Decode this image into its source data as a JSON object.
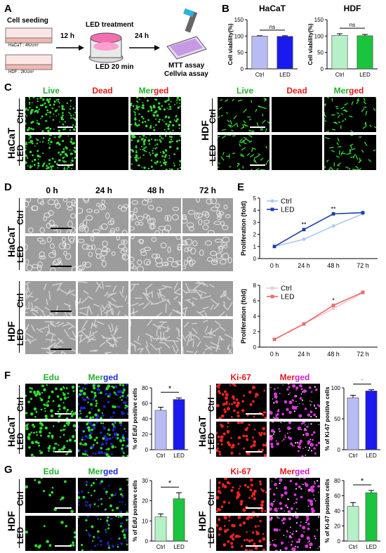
{
  "panels": {
    "A": "A",
    "B": "B",
    "C": "C",
    "D": "D",
    "E": "E",
    "F": "F",
    "G": "G"
  },
  "schematic": {
    "cell_seeding": "Cell seeding",
    "hacat_density": "HaCaT : 4K/cm²",
    "hdf_density": "HDF : 2K/cm²",
    "t1": "12 h",
    "led_treatment": "LED treatment",
    "led_time": "LED 20 min",
    "t2": "24 h",
    "assay1": "MTT assay",
    "assay2": "Cellvia assay"
  },
  "cells": {
    "hacat": "HaCaT",
    "hdf": "HDF"
  },
  "rows": {
    "ctrl": "Ctrl",
    "led": "LED"
  },
  "stain": {
    "live": "Live",
    "dead": "Dead",
    "merged": "Merged",
    "edu": "Edu",
    "ki67": "Ki-67"
  },
  "times": [
    "0 h",
    "24 h",
    "48 h",
    "72 h"
  ],
  "sig": {
    "ns": "ns",
    "star": "*",
    "dstar": "**"
  },
  "colors": {
    "ctrl_blue": "#b8bcf4",
    "led_blue": "#1a1aee",
    "ctrl_green": "#b6f0c6",
    "led_green": "#1bc43d",
    "line_ctrl_blue": "#a9c8f4",
    "line_led_blue": "#1c3fae",
    "line_ctrl_red": "#f6c6cc",
    "line_led_red": "#ef6a6a"
  },
  "chart_data": [
    {
      "id": "B-HaCaT",
      "type": "bar",
      "title": "HaCaT",
      "ylabel": "Cell viability(%)",
      "categories": [
        "Ctrl",
        "LED"
      ],
      "values": [
        100,
        99
      ],
      "errors": [
        1,
        2
      ],
      "ylim": [
        0,
        150
      ],
      "yticks": [
        0,
        50,
        100,
        150
      ],
      "significance": "ns"
    },
    {
      "id": "B-HDF",
      "type": "bar",
      "title": "HDF",
      "ylabel": "Cell viability(%)",
      "categories": [
        "Ctrl",
        "LED"
      ],
      "values": [
        102,
        101
      ],
      "errors": [
        5,
        4
      ],
      "ylim": [
        0,
        150
      ],
      "yticks": [
        0,
        50,
        100,
        150
      ],
      "significance": "ns"
    },
    {
      "id": "E-HaCaT",
      "type": "line",
      "ylabel": "Proliferation (fold)",
      "x": [
        "0 h",
        "24 h",
        "48 h",
        "72 h"
      ],
      "ylim": [
        0,
        5
      ],
      "yticks": [
        0,
        1,
        2,
        3,
        4,
        5
      ],
      "series": [
        {
          "name": "Ctrl",
          "values": [
            1,
            1.6,
            2.7,
            3.7
          ]
        },
        {
          "name": "LED",
          "values": [
            1,
            2.4,
            3.7,
            3.8
          ]
        }
      ],
      "annotations": [
        "",
        "**",
        "**",
        ""
      ]
    },
    {
      "id": "E-HDF",
      "type": "line",
      "ylabel": "Proliferation (fold)",
      "x": [
        "0 h",
        "24 h",
        "48 h",
        "72 h"
      ],
      "ylim": [
        0,
        8
      ],
      "yticks": [
        0,
        2,
        4,
        6,
        8
      ],
      "series": [
        {
          "name": "Ctrl",
          "values": [
            1,
            3,
            5,
            7
          ]
        },
        {
          "name": "LED",
          "values": [
            1,
            3,
            5.4,
            7.1
          ]
        }
      ],
      "annotations": [
        "",
        "",
        "*",
        ""
      ]
    },
    {
      "id": "F-EdU",
      "type": "bar",
      "ylabel": "% of EdU positive cells",
      "categories": [
        "Ctrl",
        "LED"
      ],
      "values": [
        51,
        65
      ],
      "errors": [
        4,
        2
      ],
      "ylim": [
        0,
        80
      ],
      "yticks": [
        0,
        20,
        40,
        60,
        80
      ],
      "significance": "*"
    },
    {
      "id": "F-Ki67",
      "type": "bar",
      "ylabel": "% of Ki-67 positive cells",
      "categories": [
        "Ctrl",
        "LED"
      ],
      "values": [
        84,
        95
      ],
      "errors": [
        4,
        2
      ],
      "ylim": [
        0,
        100
      ],
      "yticks": [
        0,
        50,
        100
      ],
      "significance": "*"
    },
    {
      "id": "G-EdU",
      "type": "bar",
      "ylabel": "% of EdU positive cells",
      "categories": [
        "Ctrl",
        "LED"
      ],
      "values": [
        12,
        21
      ],
      "errors": [
        1.5,
        3
      ],
      "ylim": [
        0,
        30
      ],
      "yticks": [
        0,
        10,
        20,
        30
      ],
      "significance": "*"
    },
    {
      "id": "G-Ki67",
      "type": "bar",
      "ylabel": "% of Ki-67 positive cells",
      "categories": [
        "Ctrl",
        "LED"
      ],
      "values": [
        46,
        64
      ],
      "errors": [
        5,
        3
      ],
      "ylim": [
        0,
        80
      ],
      "yticks": [
        0,
        20,
        40,
        60,
        80
      ],
      "significance": "*"
    }
  ]
}
